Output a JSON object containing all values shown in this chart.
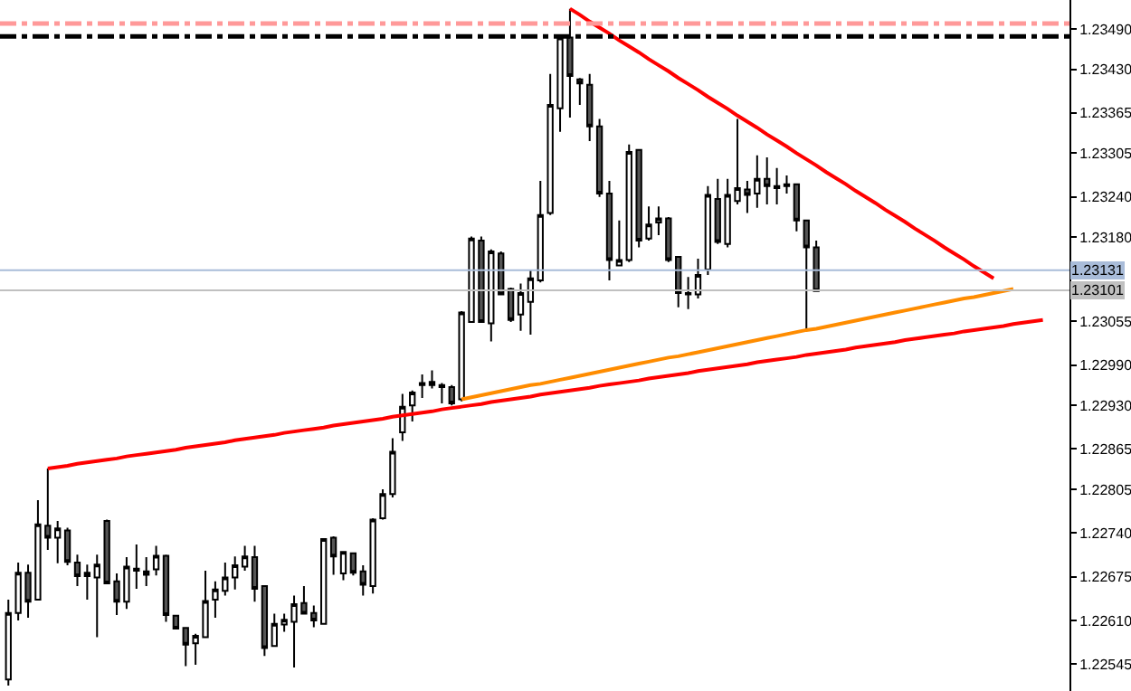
{
  "chart_data": {
    "type": "candlestick",
    "categories": [
      null,
      null,
      null,
      null,
      null,
      null,
      null,
      null,
      null,
      null,
      null,
      null,
      null,
      null,
      null,
      null,
      null,
      null,
      null,
      null,
      null,
      null,
      null,
      null,
      null,
      null,
      null,
      null,
      null,
      null,
      null,
      null,
      null,
      null,
      null,
      null,
      null,
      null,
      null,
      null,
      null,
      null,
      null,
      null,
      null,
      null,
      null,
      null,
      null,
      null,
      null,
      null,
      null,
      null,
      null,
      null,
      null,
      null,
      null,
      null,
      null,
      null,
      null,
      null,
      null,
      null,
      null,
      null,
      null,
      null,
      null,
      null,
      null,
      null,
      null,
      null,
      null,
      null,
      null,
      null,
      null,
      null,
      null,
      null,
      null,
      null,
      null,
      null,
      null,
      null,
      null,
      null,
      null,
      null,
      null,
      null,
      null,
      null,
      null,
      null,
      null,
      null,
      null,
      null,
      null,
      null
    ],
    "ohlc": [
      [
        1.22522,
        1.22641,
        1.22513,
        1.22621
      ],
      [
        1.22621,
        1.22696,
        1.2261,
        1.22681
      ],
      [
        1.22681,
        1.22693,
        1.22614,
        1.22638
      ],
      [
        1.22641,
        1.22789,
        1.22641,
        1.22753
      ],
      [
        1.22751,
        1.22836,
        1.22715,
        1.22733
      ],
      [
        1.22733,
        1.22758,
        1.22695,
        1.22747
      ],
      [
        1.22744,
        1.22748,
        1.22692,
        1.22697
      ],
      [
        1.22696,
        1.22708,
        1.22661,
        1.22676
      ],
      [
        1.22681,
        1.22693,
        1.22641,
        1.22676
      ],
      [
        1.22674,
        1.22708,
        1.22585,
        1.22693
      ],
      [
        1.22758,
        1.2276,
        1.22665,
        1.22665
      ],
      [
        1.22668,
        1.2268,
        1.22618,
        1.22638
      ],
      [
        1.22638,
        1.22704,
        1.22627,
        1.2269
      ],
      [
        1.22684,
        1.22723,
        1.22657,
        1.22687
      ],
      [
        1.22683,
        1.22704,
        1.22661,
        1.22678
      ],
      [
        1.22686,
        1.22721,
        1.22677,
        1.22706
      ],
      [
        1.22706,
        1.22708,
        1.22608,
        1.22618
      ],
      [
        1.22617,
        1.22618,
        1.22598,
        1.22598
      ],
      [
        1.22599,
        1.226,
        1.22542,
        1.22574
      ],
      [
        1.22576,
        1.2259,
        1.22544,
        1.22587
      ],
      [
        1.22585,
        1.22684,
        1.22584,
        1.22639
      ],
      [
        1.22641,
        1.22668,
        1.22614,
        1.22656
      ],
      [
        1.22654,
        1.22696,
        1.22647,
        1.22674
      ],
      [
        1.22674,
        1.22705,
        1.22656,
        1.22692
      ],
      [
        1.2269,
        1.22721,
        1.22684,
        1.22705
      ],
      [
        1.22704,
        1.22721,
        1.22638,
        1.22657
      ],
      [
        1.22661,
        1.22662,
        1.22557,
        1.22569
      ],
      [
        1.22572,
        1.2262,
        1.22571,
        1.22605
      ],
      [
        1.22604,
        1.2262,
        1.22593,
        1.22611
      ],
      [
        1.22608,
        1.22647,
        1.2254,
        1.22634
      ],
      [
        1.22636,
        1.22661,
        1.2262,
        1.2262
      ],
      [
        1.22621,
        1.22632,
        1.226,
        1.2261
      ],
      [
        1.22605,
        1.22732,
        1.22605,
        1.22731
      ],
      [
        1.22733,
        1.22735,
        1.22678,
        1.22705
      ],
      [
        1.2268,
        1.22713,
        1.2267,
        1.22712
      ],
      [
        1.2271,
        1.22711,
        1.22677,
        1.22681
      ],
      [
        1.22683,
        1.22692,
        1.22647,
        1.22663
      ],
      [
        1.22661,
        1.22762,
        1.2265,
        1.2276
      ],
      [
        1.22762,
        1.22805,
        1.2276,
        1.22798
      ],
      [
        1.22798,
        1.22881,
        1.22793,
        1.22861
      ],
      [
        1.2289,
        1.22947,
        1.22877,
        1.22928
      ],
      [
        1.2293,
        1.22952,
        1.22906,
        1.22949
      ],
      [
        1.2296,
        1.22976,
        1.22941,
        1.22963
      ],
      [
        1.2296,
        1.22982,
        1.22955,
        1.22965
      ],
      [
        1.2296,
        1.22963,
        1.22933,
        1.22957
      ],
      [
        1.22957,
        1.2296,
        1.2293,
        1.22933
      ],
      [
        1.22939,
        1.2307,
        1.22936,
        1.23068
      ],
      [
        1.23054,
        1.23181,
        1.23054,
        1.23178
      ],
      [
        1.23175,
        1.23181,
        1.23054,
        1.23054
      ],
      [
        1.23052,
        1.23162,
        1.23025,
        1.23159
      ],
      [
        1.23156,
        1.23159,
        1.23095,
        1.23095
      ],
      [
        1.23103,
        1.23105,
        1.23054,
        1.23057
      ],
      [
        1.23065,
        1.23111,
        1.23041,
        1.23097
      ],
      [
        1.23084,
        1.23132,
        1.23035,
        1.23119
      ],
      [
        1.23116,
        1.23264,
        1.23113,
        1.23213
      ],
      [
        1.23216,
        1.23423,
        1.23213,
        1.23377
      ],
      [
        1.23372,
        1.23482,
        1.23337,
        1.23477
      ],
      [
        1.23477,
        1.2352,
        1.23358,
        1.2342
      ],
      [
        1.23415,
        1.23417,
        1.23377,
        1.23409
      ],
      [
        1.23407,
        1.23423,
        1.23323,
        1.23345
      ],
      [
        1.23345,
        1.23356,
        1.2324,
        1.23245
      ],
      [
        1.23245,
        1.23264,
        1.23116,
        1.23146
      ],
      [
        1.23138,
        1.23205,
        1.23138,
        1.23146
      ],
      [
        1.23146,
        1.23318,
        1.23143,
        1.23307
      ],
      [
        1.2331,
        1.2331,
        1.23165,
        1.23175
      ],
      [
        1.23178,
        1.23226,
        1.23175,
        1.23199
      ],
      [
        1.23202,
        1.23226,
        1.23183,
        1.23208
      ],
      [
        1.23208,
        1.2321,
        1.23143,
        1.23146
      ],
      [
        1.23151,
        1.23151,
        1.23076,
        1.23097
      ],
      [
        1.23097,
        1.23121,
        1.23073,
        1.23095
      ],
      [
        1.23095,
        1.23148,
        1.23089,
        1.23124
      ],
      [
        1.23132,
        1.23256,
        1.23124,
        1.23243
      ],
      [
        1.23237,
        1.23267,
        1.2317,
        1.23173
      ],
      [
        1.2317,
        1.23267,
        1.23165,
        1.23243
      ],
      [
        1.23234,
        1.23356,
        1.23229,
        1.23253
      ],
      [
        1.23251,
        1.23264,
        1.23216,
        1.23243
      ],
      [
        1.23245,
        1.23302,
        1.23224,
        1.23267
      ],
      [
        1.23267,
        1.23299,
        1.23229,
        1.23256
      ],
      [
        1.23256,
        1.23283,
        1.23229,
        1.23253
      ],
      [
        1.23259,
        1.23272,
        1.23245,
        1.23256
      ],
      [
        1.23259,
        1.23259,
        1.23189,
        1.23205
      ],
      [
        1.23205,
        1.23205,
        1.23043,
        1.23165
      ],
      [
        1.23165,
        1.23175,
        1.231,
        1.231
      ],
      null,
      null,
      null,
      null,
      null,
      null,
      null,
      null,
      null,
      null,
      null,
      null,
      null,
      null,
      null,
      null,
      null,
      null,
      null,
      null,
      null,
      null,
      null
    ],
    "series": [
      {
        "type": "line",
        "color": "#ff0000",
        "values": [
          null,
          null,
          null,
          null,
          1.22836,
          1.22838,
          1.2284,
          1.22843,
          1.22845,
          1.22847,
          1.22849,
          1.22851,
          1.22854,
          1.22856,
          1.22858,
          1.2286,
          1.22862,
          1.22864,
          1.22867,
          1.22869,
          1.22871,
          1.22873,
          1.22875,
          1.22878,
          1.2288,
          1.22882,
          1.22884,
          1.22886,
          1.22889,
          1.22891,
          1.22893,
          1.22895,
          1.22897,
          1.229,
          1.22902,
          1.22904,
          1.22906,
          1.22908,
          1.2291,
          1.22913,
          1.22915,
          1.22917,
          1.22919,
          1.22921,
          1.22924,
          1.22926,
          1.22928,
          1.2293,
          1.22932,
          1.22935,
          1.22937,
          1.22939,
          1.22941,
          1.22943,
          1.22946,
          1.22948,
          1.2295,
          1.22952,
          1.22954,
          1.22956,
          1.22959,
          1.22961,
          1.22963,
          1.22965,
          1.22967,
          1.2297,
          1.22972,
          1.22974,
          1.22976,
          1.22978,
          1.22981,
          1.22983,
          1.22985,
          1.22987,
          1.22989,
          1.22991,
          1.22994,
          1.22996,
          1.22998,
          1.23,
          1.23002,
          1.23005,
          1.23007,
          1.23009,
          1.23011,
          1.23013,
          1.23016,
          1.23018,
          1.2302,
          1.23022,
          1.23024,
          1.23027,
          1.23029,
          1.23031,
          1.23033,
          1.23035,
          1.23037,
          1.2304,
          1.23042,
          1.23044,
          1.23046,
          1.23048,
          1.23051,
          1.23053,
          1.23055,
          1.23057
        ]
      },
      {
        "type": "line",
        "color": "#ff0000",
        "values": [
          null,
          null,
          null,
          null,
          null,
          null,
          null,
          null,
          null,
          null,
          null,
          null,
          null,
          null,
          null,
          null,
          null,
          null,
          null,
          null,
          null,
          null,
          null,
          null,
          null,
          null,
          null,
          null,
          null,
          null,
          null,
          null,
          null,
          null,
          null,
          null,
          null,
          null,
          null,
          null,
          null,
          null,
          null,
          null,
          null,
          null,
          null,
          null,
          null,
          null,
          null,
          null,
          null,
          null,
          null,
          null,
          null,
          1.2352,
          1.23511,
          1.23501,
          1.23492,
          1.23483,
          1.23473,
          1.23464,
          1.23455,
          1.23445,
          1.23436,
          1.23427,
          1.23417,
          1.23408,
          1.23399,
          1.23389,
          1.2338,
          1.23371,
          1.23361,
          1.23352,
          1.23343,
          1.23333,
          1.23324,
          1.23315,
          1.23305,
          1.23296,
          1.23287,
          1.23277,
          1.23268,
          1.23259,
          1.23249,
          1.2324,
          1.23231,
          1.23221,
          1.23212,
          1.23203,
          1.23193,
          1.23184,
          1.23175,
          1.23165,
          1.23156,
          1.23147,
          1.23137,
          1.23128,
          1.23119,
          null,
          null,
          null,
          null,
          null
        ]
      },
      {
        "type": "line",
        "color": "#ff8c00",
        "values": [
          null,
          null,
          null,
          null,
          null,
          null,
          null,
          null,
          null,
          null,
          null,
          null,
          null,
          null,
          null,
          null,
          null,
          null,
          null,
          null,
          null,
          null,
          null,
          null,
          null,
          null,
          null,
          null,
          null,
          null,
          null,
          null,
          null,
          null,
          null,
          null,
          null,
          null,
          null,
          null,
          null,
          null,
          null,
          null,
          null,
          null,
          1.22939,
          1.22942,
          1.22945,
          1.22948,
          1.22951,
          1.22954,
          1.22957,
          1.2296,
          1.22962,
          1.22965,
          1.22968,
          1.22971,
          1.22974,
          1.22977,
          1.2298,
          1.22983,
          1.22986,
          1.22989,
          1.22992,
          1.22995,
          1.22998,
          1.23001,
          1.23003,
          1.23006,
          1.23009,
          1.23012,
          1.23015,
          1.23018,
          1.23021,
          1.23024,
          1.23027,
          1.2303,
          1.23033,
          1.23036,
          1.23039,
          1.23042,
          1.23044,
          1.23047,
          1.2305,
          1.23053,
          1.23056,
          1.23059,
          1.23062,
          1.23065,
          1.23068,
          1.23071,
          1.23074,
          1.23077,
          1.2308,
          1.23083,
          1.23086,
          1.23089,
          1.23091,
          1.23094,
          1.23097,
          1.231,
          1.23103,
          null,
          null,
          null
        ]
      }
    ],
    "ylim": [
      1.22505,
      1.23533
    ],
    "yticks": [
      {
        "value": 1.2349,
        "label": "1.23490"
      },
      {
        "value": 1.2343,
        "label": "1.23430"
      },
      1.23365,
      1.23305,
      {
        "value": 1.2324,
        "label": "1.23240"
      },
      {
        "value": 1.2318,
        "label": "1.23180"
      },
      1.23055,
      {
        "value": 1.2299,
        "label": "1.22990"
      },
      {
        "value": 1.2293,
        "label": "1.22930"
      },
      1.22865,
      1.22805,
      {
        "value": 1.2274,
        "label": "1.22740"
      },
      1.22675,
      {
        "value": 1.2261,
        "label": "1.22610"
      },
      1.22545
    ],
    "ref_lines": [
      {
        "axis": "y",
        "value": 1.23498,
        "color": "#ff9999",
        "line_style": "dashed"
      },
      {
        "axis": "y",
        "value": 1.23479,
        "color": "#000000",
        "line_style": "dashed"
      },
      {
        "axis": "y",
        "value": 1.23131,
        "label": "1.23131",
        "color": "#a9bcd9",
        "line_style": "solid"
      },
      {
        "axis": "y",
        "value": 1.23101,
        "label": "1.23101",
        "color": "#c0c0c0",
        "line_style": "solid"
      }
    ],
    "tick_labels": "y"
  }
}
